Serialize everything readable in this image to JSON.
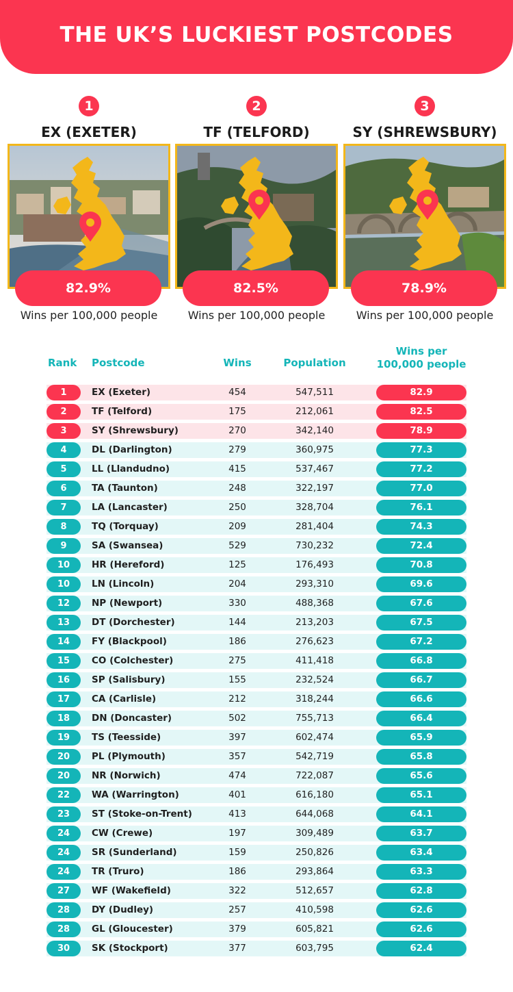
{
  "title": "THE UK’S LUCKIEST POSTCODES",
  "podium": [
    {
      "rank": "1",
      "name": "EX (EXETER)",
      "value": "82.9%",
      "caption": "Wins per 100,000 people"
    },
    {
      "rank": "2",
      "name": "TF (TELFORD)",
      "value": "82.5%",
      "caption": "Wins per 100,000 people"
    },
    {
      "rank": "3",
      "name": "SY (SHREWSBURY)",
      "value": "78.9%",
      "caption": "Wins per 100,000 people"
    }
  ],
  "colors": {
    "accent_red": "#fb3550",
    "accent_teal": "#14b5b8",
    "map_yellow": "#f3b71a"
  },
  "chart_data": {
    "type": "table",
    "columns": [
      "Rank",
      "Postcode",
      "Wins",
      "Population",
      "Wins per 100,000 people"
    ],
    "rows": [
      {
        "rank": "1",
        "postcode": "EX (Exeter)",
        "wins": "454",
        "population": "547,511",
        "rate": "82.9"
      },
      {
        "rank": "2",
        "postcode": "TF (Telford)",
        "wins": "175",
        "population": "212,061",
        "rate": "82.5"
      },
      {
        "rank": "3",
        "postcode": "SY (Shrewsbury)",
        "wins": "270",
        "population": "342,140",
        "rate": "78.9"
      },
      {
        "rank": "4",
        "postcode": "DL (Darlington)",
        "wins": "279",
        "population": "360,975",
        "rate": "77.3"
      },
      {
        "rank": "5",
        "postcode": "LL (Llandudno)",
        "wins": "415",
        "population": "537,467",
        "rate": "77.2"
      },
      {
        "rank": "6",
        "postcode": "TA (Taunton)",
        "wins": "248",
        "population": "322,197",
        "rate": "77.0"
      },
      {
        "rank": "7",
        "postcode": "LA (Lancaster)",
        "wins": "250",
        "population": "328,704",
        "rate": "76.1"
      },
      {
        "rank": "8",
        "postcode": "TQ (Torquay)",
        "wins": "209",
        "population": "281,404",
        "rate": "74.3"
      },
      {
        "rank": "9",
        "postcode": "SA (Swansea)",
        "wins": "529",
        "population": "730,232",
        "rate": "72.4"
      },
      {
        "rank": "10",
        "postcode": "HR (Hereford)",
        "wins": "125",
        "population": "176,493",
        "rate": "70.8"
      },
      {
        "rank": "10",
        "postcode": "LN (Lincoln)",
        "wins": "204",
        "population": "293,310",
        "rate": "69.6"
      },
      {
        "rank": "12",
        "postcode": "NP (Newport)",
        "wins": "330",
        "population": "488,368",
        "rate": "67.6"
      },
      {
        "rank": "13",
        "postcode": "DT (Dorchester)",
        "wins": "144",
        "population": "213,203",
        "rate": "67.5"
      },
      {
        "rank": "14",
        "postcode": "FY (Blackpool)",
        "wins": "186",
        "population": "276,623",
        "rate": "67.2"
      },
      {
        "rank": "15",
        "postcode": "CO (Colchester)",
        "wins": "275",
        "population": "411,418",
        "rate": "66.8"
      },
      {
        "rank": "16",
        "postcode": "SP (Salisbury)",
        "wins": "155",
        "population": "232,524",
        "rate": "66.7"
      },
      {
        "rank": "17",
        "postcode": "CA (Carlisle)",
        "wins": "212",
        "population": "318,244",
        "rate": "66.6"
      },
      {
        "rank": "18",
        "postcode": "DN (Doncaster)",
        "wins": "502",
        "population": "755,713",
        "rate": "66.4"
      },
      {
        "rank": "19",
        "postcode": "TS (Teesside)",
        "wins": "397",
        "population": "602,474",
        "rate": "65.9"
      },
      {
        "rank": "20",
        "postcode": "PL (Plymouth)",
        "wins": "357",
        "population": "542,719",
        "rate": "65.8"
      },
      {
        "rank": "20",
        "postcode": "NR (Norwich)",
        "wins": "474",
        "population": "722,087",
        "rate": "65.6"
      },
      {
        "rank": "22",
        "postcode": "WA (Warrington)",
        "wins": "401",
        "population": "616,180",
        "rate": "65.1"
      },
      {
        "rank": "23",
        "postcode": "ST (Stoke-on-Trent)",
        "wins": "413",
        "population": "644,068",
        "rate": "64.1"
      },
      {
        "rank": "24",
        "postcode": "CW (Crewe)",
        "wins": "197",
        "population": "309,489",
        "rate": "63.7"
      },
      {
        "rank": "24",
        "postcode": "SR (Sunderland)",
        "wins": "159",
        "population": "250,826",
        "rate": "63.4"
      },
      {
        "rank": "24",
        "postcode": "TR (Truro)",
        "wins": "186",
        "population": "293,864",
        "rate": "63.3"
      },
      {
        "rank": "27",
        "postcode": "WF (Wakefield)",
        "wins": "322",
        "population": "512,657",
        "rate": "62.8"
      },
      {
        "rank": "28",
        "postcode": "DY (Dudley)",
        "wins": "257",
        "population": "410,598",
        "rate": "62.6"
      },
      {
        "rank": "28",
        "postcode": "GL (Gloucester)",
        "wins": "379",
        "population": "605,821",
        "rate": "62.6"
      },
      {
        "rank": "30",
        "postcode": "SK (Stockport)",
        "wins": "377",
        "population": "603,795",
        "rate": "62.4"
      }
    ]
  }
}
